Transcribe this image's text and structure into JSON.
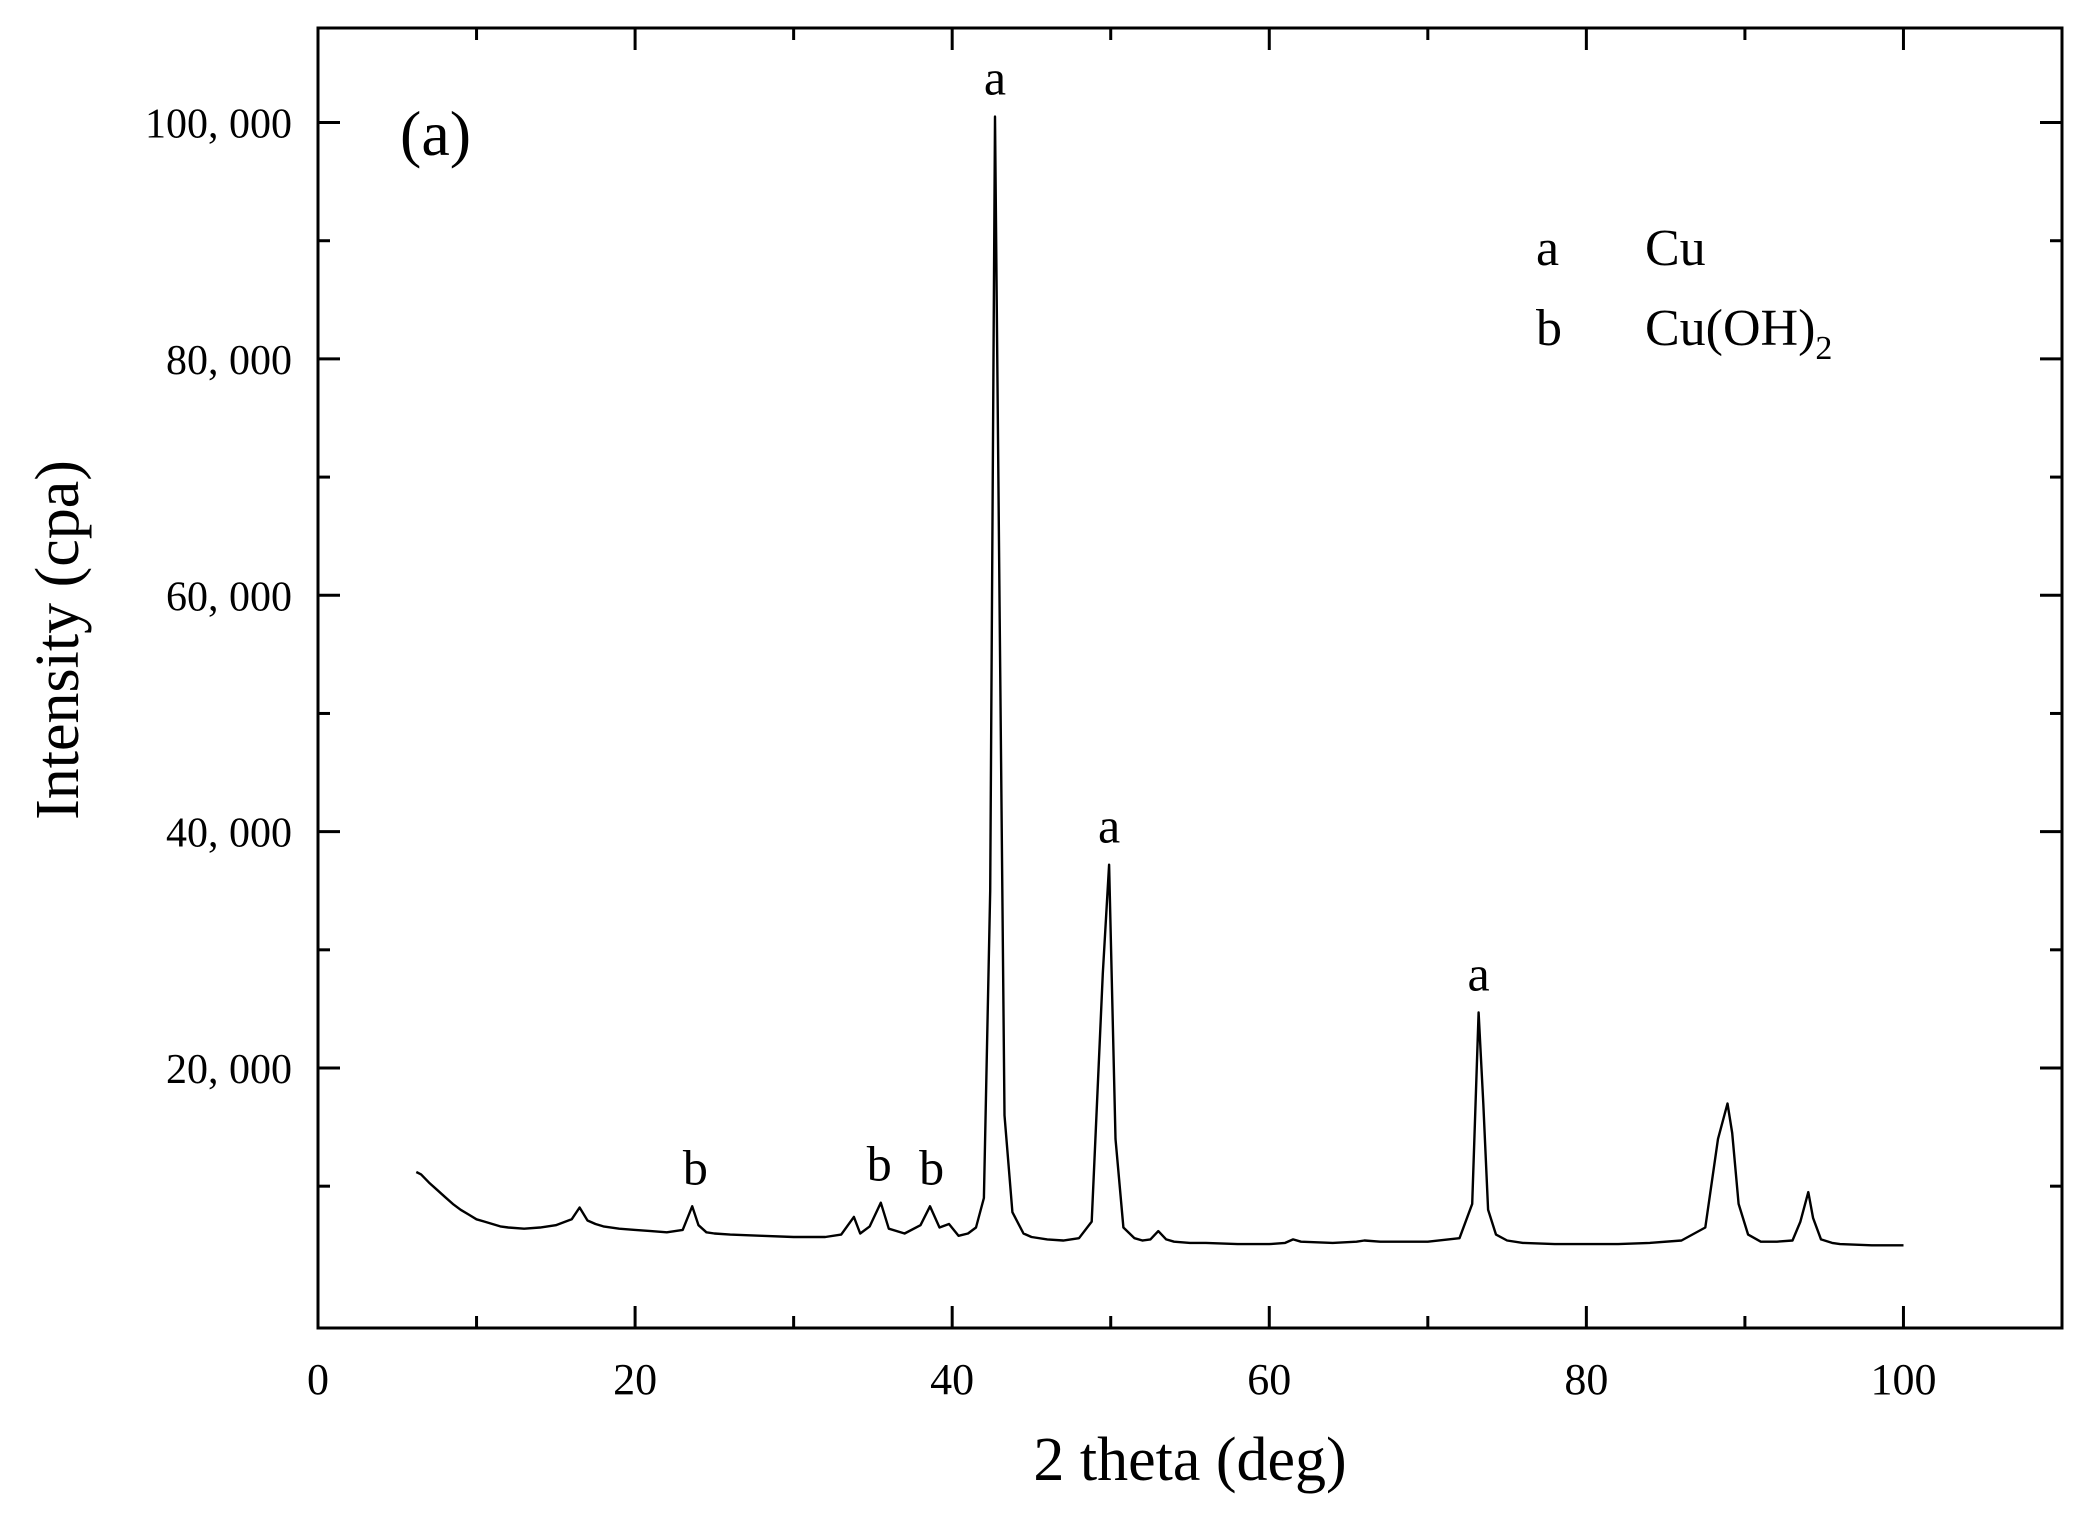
{
  "chart_data": {
    "type": "line",
    "panel_label": "(a)",
    "xlabel": "2 theta (deg)",
    "ylabel": "Intensity (cpa)",
    "xlim": [
      0,
      110
    ],
    "ylim": [
      -2000,
      108000
    ],
    "x_ticks": [
      0,
      20,
      40,
      60,
      80,
      100
    ],
    "y_ticks": [
      20000,
      40000,
      60000,
      80000,
      100000
    ],
    "y_tick_labels": [
      "20, 000",
      "40, 000",
      "60, 000",
      "80, 000",
      "100, 000"
    ],
    "grid": false,
    "legend_position": "top-right",
    "legend": [
      {
        "key": "a",
        "phase": "Cu",
        "subscript": ""
      },
      {
        "key": "b",
        "phase": "Cu(OH)",
        "subscript": "2"
      }
    ],
    "series": [
      {
        "x": [
          6.2,
          6.5,
          7,
          7.5,
          8,
          8.5,
          9,
          9.5,
          10,
          10.5,
          11,
          11.5,
          12,
          13,
          14,
          15,
          16,
          16.5,
          17,
          17.5,
          18,
          19,
          20,
          21,
          22,
          23,
          23.6,
          24,
          24.5,
          25,
          26,
          28,
          30,
          32,
          33,
          33.8,
          34.2,
          34.8,
          35.5,
          36,
          37,
          38,
          38.6,
          39.2,
          39.8,
          40.4,
          41,
          41.5,
          42,
          42.4,
          42.7,
          43,
          43.3,
          43.8,
          44.5,
          45,
          46,
          47,
          48,
          48.8,
          49.5,
          49.9,
          50.3,
          50.8,
          51.5,
          52,
          52.5,
          53,
          53.5,
          54,
          55,
          56,
          58,
          60,
          61,
          61.5,
          62,
          64,
          65.5,
          66,
          67,
          68,
          70,
          72,
          72.8,
          73.2,
          73.5,
          73.8,
          74.3,
          75,
          76,
          78,
          80,
          82,
          84,
          86,
          87.5,
          88.3,
          88.9,
          89.2,
          89.6,
          90.2,
          91,
          92,
          93,
          93.5,
          94,
          94.3,
          94.8,
          95.5,
          96,
          98,
          100
        ],
        "y": [
          11200,
          11000,
          10300,
          9700,
          9100,
          8500,
          8000,
          7600,
          7200,
          7000,
          6800,
          6600,
          6500,
          6400,
          6500,
          6700,
          7200,
          8200,
          7100,
          6800,
          6600,
          6400,
          6300,
          6200,
          6100,
          6300,
          8300,
          6700,
          6100,
          6000,
          5900,
          5800,
          5700,
          5700,
          5900,
          7400,
          6000,
          6600,
          8600,
          6400,
          6000,
          6700,
          8300,
          6500,
          6800,
          5800,
          6000,
          6500,
          9000,
          35000,
          100500,
          58000,
          16000,
          7800,
          6000,
          5700,
          5500,
          5400,
          5600,
          7000,
          28000,
          37200,
          14000,
          6500,
          5600,
          5400,
          5500,
          6200,
          5500,
          5300,
          5200,
          5200,
          5100,
          5100,
          5200,
          5500,
          5300,
          5200,
          5300,
          5400,
          5300,
          5300,
          5300,
          5600,
          8500,
          24700,
          17000,
          8000,
          5900,
          5400,
          5200,
          5100,
          5100,
          5100,
          5200,
          5400,
          6500,
          14000,
          17000,
          14500,
          8500,
          5900,
          5300,
          5300,
          5400,
          7000,
          9500,
          7300,
          5500,
          5200,
          5100,
          5000,
          5000
        ]
      }
    ],
    "peak_labels": [
      {
        "label": "b",
        "x": 23.8,
        "y": 8300
      },
      {
        "label": "b",
        "x": 35.4,
        "y": 8600
      },
      {
        "label": "b",
        "x": 38.7,
        "y": 8300
      },
      {
        "label": "a",
        "x": 42.7,
        "y": 100500
      },
      {
        "label": "a",
        "x": 49.9,
        "y": 37200
      },
      {
        "label": "a",
        "x": 73.2,
        "y": 24700
      }
    ]
  }
}
